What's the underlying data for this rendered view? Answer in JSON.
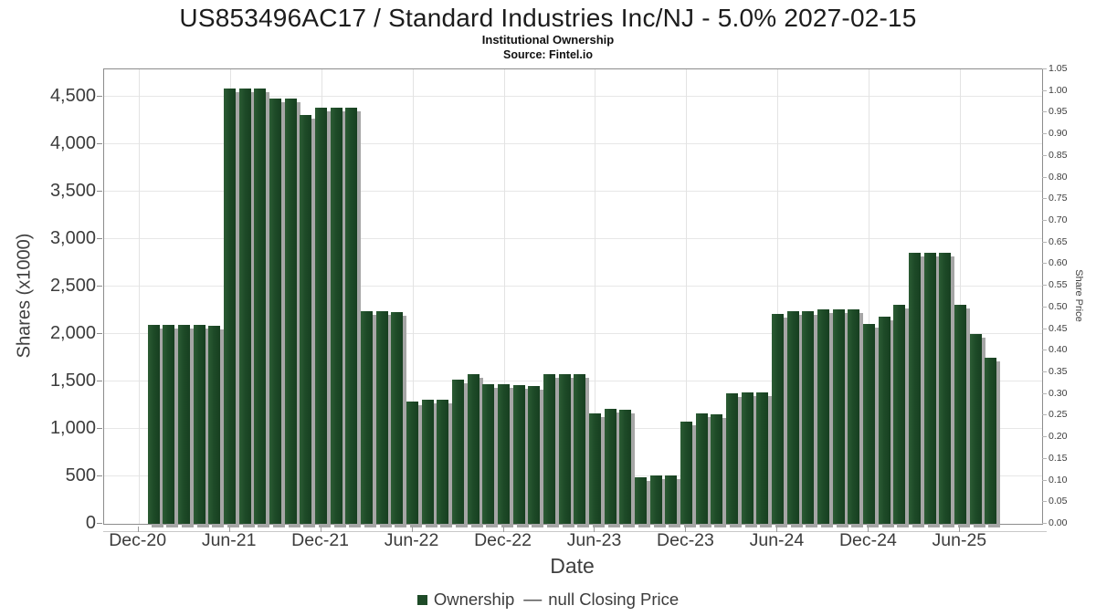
{
  "header": {
    "title": "US853496AC17 / Standard Industries Inc/NJ - 5.0% 2027-02-15",
    "subtitle": "Institutional Ownership",
    "source": "Source: Fintel.io"
  },
  "axes": {
    "left": {
      "title": "Shares (x1000)",
      "ticks": [
        {
          "value": 0,
          "label": "0"
        },
        {
          "value": 500,
          "label": "500"
        },
        {
          "value": 1000,
          "label": "1,000"
        },
        {
          "value": 1500,
          "label": "1,500"
        },
        {
          "value": 2000,
          "label": "2,000"
        },
        {
          "value": 2500,
          "label": "2,500"
        },
        {
          "value": 3000,
          "label": "3,000"
        },
        {
          "value": 3500,
          "label": "3,500"
        },
        {
          "value": 4000,
          "label": "4,000"
        },
        {
          "value": 4500,
          "label": "4,500"
        }
      ]
    },
    "right": {
      "title": "Share Price",
      "tick_labels": [
        "0.00",
        "0.05",
        "0.10",
        "0.15",
        "0.20",
        "0.25",
        "0.30",
        "0.35",
        "0.40",
        "0.45",
        "0.50",
        "0.55",
        "0.60",
        "0.65",
        "0.70",
        "0.75",
        "0.80",
        "0.85",
        "0.90",
        "0.95",
        "1.00",
        "1.05"
      ]
    },
    "x": {
      "title": "Date",
      "ticks": [
        {
          "label": "Dec-20",
          "month": 0
        },
        {
          "label": "Jun-21",
          "month": 6
        },
        {
          "label": "Dec-21",
          "month": 12
        },
        {
          "label": "Jun-22",
          "month": 18
        },
        {
          "label": "Dec-22",
          "month": 24
        },
        {
          "label": "Jun-23",
          "month": 30
        },
        {
          "label": "Dec-23",
          "month": 36
        },
        {
          "label": "Jun-24",
          "month": 42
        },
        {
          "label": "Dec-24",
          "month": 48
        },
        {
          "label": "Jun-25",
          "month": 54
        }
      ]
    }
  },
  "legend": {
    "ownership_label": "Ownership",
    "line_glyph": "—",
    "closing_price_label": "null Closing Price"
  },
  "colors": {
    "bar": "#1e4b28",
    "bar_shadow": "#a6a6a6",
    "grid": "#e7e7e7",
    "plot_border": "#8c8c8c",
    "text": "#3c3c3c"
  },
  "chart_data": {
    "type": "bar",
    "title": "US853496AC17 / Standard Industries Inc/NJ - 5.0% 2027-02-15",
    "subtitle": "Institutional Ownership",
    "source": "Source: Fintel.io",
    "xlabel": "Date",
    "ylabel": "Shares (x1000)",
    "y2label": "Share Price",
    "ylim": [
      0,
      4790
    ],
    "y2lim": [
      0,
      1.05
    ],
    "grid": true,
    "legend_position": "bottom",
    "series_name": "Ownership",
    "x": [
      "Jan-21",
      "Feb-21",
      "Mar-21",
      "Apr-21",
      "May-21",
      "Jun-21",
      "Jul-21",
      "Aug-21",
      "Sep-21",
      "Oct-21",
      "Nov-21",
      "Dec-21",
      "Jan-22",
      "Feb-22",
      "Mar-22",
      "Apr-22",
      "May-22",
      "Jun-22",
      "Jul-22",
      "Aug-22",
      "Sep-22",
      "Oct-22",
      "Nov-22",
      "Dec-22",
      "Jan-23",
      "Feb-23",
      "Mar-23",
      "Apr-23",
      "May-23",
      "Jun-23",
      "Jul-23",
      "Aug-23",
      "Sep-23",
      "Oct-23",
      "Nov-23",
      "Dec-23",
      "Jan-24",
      "Feb-24",
      "Mar-24",
      "Apr-24",
      "May-24",
      "Jun-24",
      "Jul-24",
      "Aug-24",
      "Sep-24",
      "Oct-24",
      "Nov-24",
      "Dec-24",
      "Jan-25",
      "Feb-25",
      "Mar-25",
      "Apr-25",
      "May-25",
      "Jun-25",
      "Jul-25",
      "Aug-25"
    ],
    "values": [
      2100,
      2100,
      2100,
      2100,
      2090,
      4590,
      4590,
      4590,
      4480,
      4480,
      4310,
      4390,
      4390,
      4390,
      2240,
      2240,
      2230,
      1290,
      1310,
      1310,
      1520,
      1580,
      1470,
      1470,
      1460,
      1450,
      1580,
      1580,
      1580,
      1160,
      1210,
      1200,
      490,
      510,
      510,
      1080,
      1160,
      1150,
      1380,
      1390,
      1390,
      2210,
      2240,
      2240,
      2260,
      2260,
      2260,
      2110,
      2180,
      2310,
      2860,
      2860,
      2860,
      2310,
      2000,
      1750
    ],
    "second_series": {
      "name": "null Closing Price",
      "values": []
    }
  }
}
